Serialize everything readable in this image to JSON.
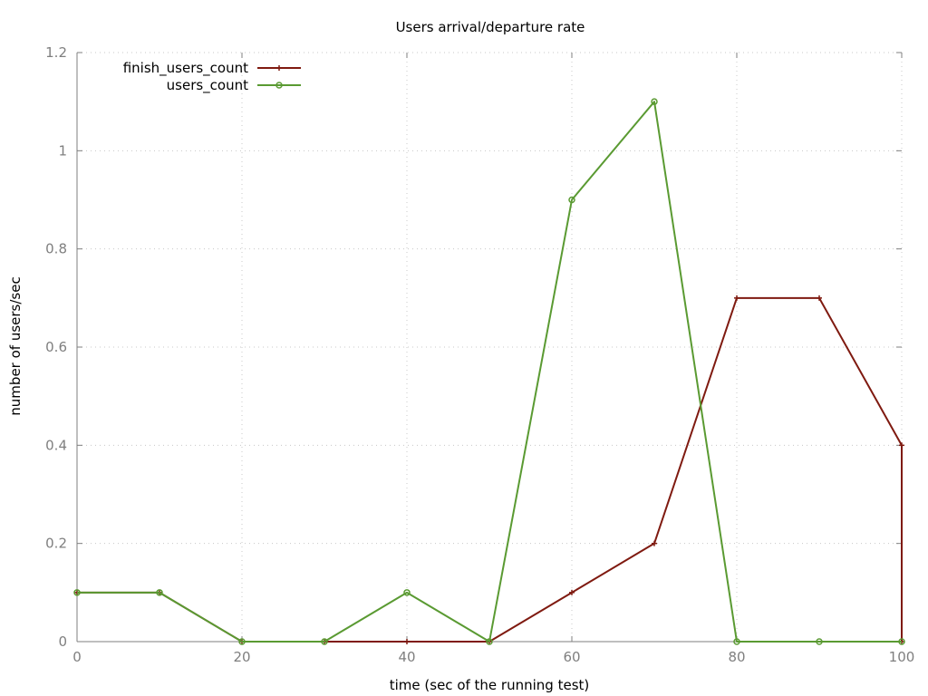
{
  "chart_data": {
    "type": "line",
    "title": "Users arrival/departure rate",
    "xlabel": "time (sec of the running test)",
    "ylabel": "number of users/sec",
    "xlim": [
      0,
      100
    ],
    "ylim": [
      0,
      1.2
    ],
    "x_ticks": [
      "0",
      "20",
      "40",
      "60",
      "80",
      "100"
    ],
    "y_ticks": [
      "0",
      "0.2",
      "0.4",
      "0.6",
      "0.8",
      "1",
      "1.2"
    ],
    "x_tick_values": [
      0,
      20,
      40,
      60,
      80,
      100
    ],
    "y_tick_values": [
      0,
      0.2,
      0.4,
      0.6,
      0.8,
      1.0,
      1.2
    ],
    "grid": true,
    "legend_position": "top-left",
    "series": [
      {
        "name": "finish_users_count",
        "color": "#7f1a10",
        "marker": "plus",
        "x": [
          0,
          10,
          20,
          30,
          40,
          50,
          60,
          70,
          80,
          90,
          100,
          100
        ],
        "y": [
          0.1,
          0.1,
          0,
          0,
          0,
          0,
          0.1,
          0.2,
          0.7,
          0.7,
          0.4,
          0
        ]
      },
      {
        "name": "users_count",
        "color": "#5a9a32",
        "marker": "circle",
        "x": [
          0,
          10,
          20,
          30,
          40,
          50,
          60,
          70,
          80,
          90,
          100
        ],
        "y": [
          0.1,
          0.1,
          0,
          0,
          0.1,
          0,
          0.9,
          1.1,
          0,
          0,
          0
        ]
      }
    ]
  }
}
